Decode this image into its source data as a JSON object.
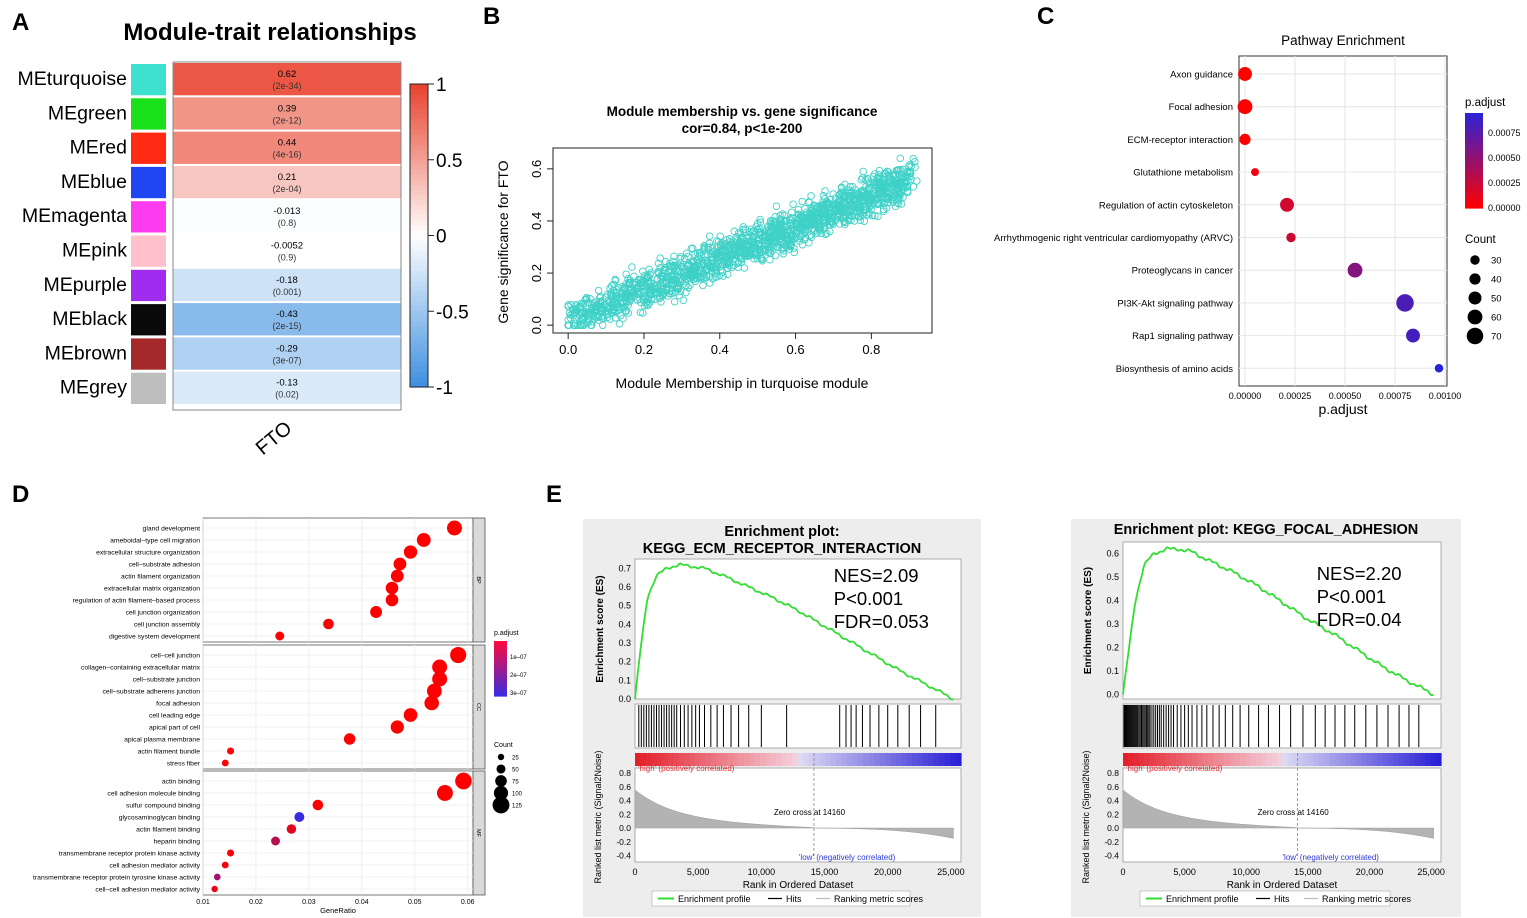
{
  "panel_labels": {
    "a": "A",
    "b": "B",
    "c": "C",
    "d": "D",
    "e": "E"
  },
  "colors": {
    "hot": "#e8412c",
    "cold": "#3d8fe0",
    "scatter": "#3fd1c7",
    "pval_low": "#ff0000",
    "pval_high": "#2a22d8",
    "gsea_curve": "#33dd33",
    "panel_bg": "#ededed"
  },
  "chart_data": [
    {
      "id": "A",
      "type": "heatmap",
      "title": "Module-trait relationships",
      "column_label": "FTO",
      "modules": [
        {
          "name": "MEturquoise",
          "color": "#3ee0d0",
          "value": 0.62,
          "pval": "(2e-34)"
        },
        {
          "name": "MEgreen",
          "color": "#19e119",
          "value": 0.39,
          "pval": "(2e-12)"
        },
        {
          "name": "MEred",
          "color": "#ff2a12",
          "value": 0.44,
          "pval": "(4e-16)"
        },
        {
          "name": "MEblue",
          "color": "#1f46f2",
          "value": 0.21,
          "pval": "(2e-04)"
        },
        {
          "name": "MEmagenta",
          "color": "#ff3bef",
          "value": -0.013,
          "pval": "(0.8)"
        },
        {
          "name": "MEpink",
          "color": "#ffc0cb",
          "value": -0.0052,
          "pval": "(0.9)"
        },
        {
          "name": "MEpurple",
          "color": "#a02cf0",
          "value": -0.18,
          "pval": "(0.001)"
        },
        {
          "name": "MEblack",
          "color": "#0a0a0a",
          "value": -0.43,
          "pval": "(2e-15)"
        },
        {
          "name": "MEbrown",
          "color": "#a5282a",
          "value": -0.29,
          "pval": "(3e-07)"
        },
        {
          "name": "MEgrey",
          "color": "#bebebe",
          "value": -0.13,
          "pval": "(0.02)"
        }
      ],
      "value_labels": [
        "0.62",
        "0.39",
        "0.44",
        "0.21",
        "-0.013",
        "-0.0052",
        "-0.18",
        "-0.43",
        "-0.29",
        "-0.13"
      ],
      "colorbar_ticks": [
        {
          "v": 1,
          "label": "1"
        },
        {
          "v": 0.5,
          "label": "0.5"
        },
        {
          "v": 0,
          "label": "0"
        },
        {
          "v": -0.5,
          "label": "-0.5"
        },
        {
          "v": -1,
          "label": "-1"
        }
      ]
    },
    {
      "id": "B",
      "type": "scatter",
      "title": "Module membership vs. gene significance",
      "subtitle": "cor=0.84, p<1e-200",
      "xlabel": "Module Membership in turquoise module",
      "ylabel": "Gene significance for FTO",
      "xlim": [
        -0.04,
        0.96
      ],
      "ylim": [
        -0.03,
        0.68
      ],
      "xticks": [
        "0.0",
        "0.2",
        "0.4",
        "0.6",
        "0.8"
      ],
      "yticks": [
        "0.0",
        "0.2",
        "0.4",
        "0.6"
      ],
      "trend": {
        "slope": 0.6,
        "intercept": 0.02,
        "noise": 0.075
      },
      "n_points": 1500
    },
    {
      "id": "C",
      "type": "scatter",
      "title": "Pathway Enrichment",
      "xlabel": "p.adjust",
      "xlim": [
        -3e-05,
        0.00101
      ],
      "xticks": [
        "0.00000",
        "0.00025",
        "0.00050",
        "0.00075",
        "0.00100"
      ],
      "pathways": [
        {
          "name": "Axon guidance",
          "p": 0.0,
          "count": 55
        },
        {
          "name": "Focal adhesion",
          "p": 0.0,
          "count": 60
        },
        {
          "name": "ECM-receptor interaction",
          "p": 0.0,
          "count": 40
        },
        {
          "name": "Glutathione metabolism",
          "p": 5e-05,
          "count": 22
        },
        {
          "name": "Regulation of actin cytoskeleton",
          "p": 0.00021,
          "count": 55
        },
        {
          "name": "Arrhythmogenic right ventricular cardiomyopathy (ARVC)",
          "p": 0.00023,
          "count": 30
        },
        {
          "name": "Proteoglycans in cancer",
          "p": 0.00055,
          "count": 60
        },
        {
          "name": "PI3K-Akt signaling pathway",
          "p": 0.0008,
          "count": 75
        },
        {
          "name": "Rap1 signaling pathway",
          "p": 0.00084,
          "count": 55
        },
        {
          "name": "Biosynthesis of amino acids",
          "p": 0.00097,
          "count": 25
        }
      ],
      "legend": {
        "color_title": "p.adjust",
        "color_ticks": [
          "0.00075",
          "0.00050",
          "0.00025",
          "0.00000"
        ],
        "size_title": "Count",
        "size_ticks": [
          "30",
          "40",
          "50",
          "60",
          "70"
        ]
      }
    },
    {
      "id": "D",
      "type": "scatter",
      "xlabel": "GeneRatio",
      "xlim": [
        0.01,
        0.061
      ],
      "xticks": [
        "0.01",
        "0.02",
        "0.03",
        "0.04",
        "0.05",
        "0.06"
      ],
      "facets": [
        {
          "label": "BP",
          "terms": [
            {
              "name": "gland development",
              "x": 0.0575,
              "count": 100,
              "p": 1e-09
            },
            {
              "name": "ameboidal–type cell migration",
              "x": 0.0517,
              "count": 90,
              "p": 1e-09
            },
            {
              "name": "extracellular structure organization",
              "x": 0.0492,
              "count": 85,
              "p": 1e-09
            },
            {
              "name": "cell–substrate adhesion",
              "x": 0.0472,
              "count": 80,
              "p": 1e-09
            },
            {
              "name": "actin filament organization",
              "x": 0.0467,
              "count": 80,
              "p": 1e-09
            },
            {
              "name": "extracellular matrix organization",
              "x": 0.0457,
              "count": 78,
              "p": 1e-09
            },
            {
              "name": "regulation of actin filament–based process",
              "x": 0.0457,
              "count": 78,
              "p": 1e-09
            },
            {
              "name": "cell junction organization",
              "x": 0.0427,
              "count": 72,
              "p": 1e-09
            },
            {
              "name": "cell junction assembly",
              "x": 0.0337,
              "count": 60,
              "p": 2e-09
            },
            {
              "name": "digestive system development",
              "x": 0.0245,
              "count": 45,
              "p": 3e-09
            }
          ]
        },
        {
          "label": "CC",
          "terms": [
            {
              "name": "cell–cell junction",
              "x": 0.0582,
              "count": 110,
              "p": 1e-09
            },
            {
              "name": "collagen–containing extracellular matrix",
              "x": 0.0547,
              "count": 100,
              "p": 1e-09
            },
            {
              "name": "cell–substrate junction",
              "x": 0.0547,
              "count": 100,
              "p": 1e-09
            },
            {
              "name": "cell–substrate adherens junction",
              "x": 0.0537,
              "count": 98,
              "p": 1e-09
            },
            {
              "name": "focal adhesion",
              "x": 0.0532,
              "count": 96,
              "p": 1e-09
            },
            {
              "name": "cell leading edge",
              "x": 0.0492,
              "count": 88,
              "p": 1e-09
            },
            {
              "name": "apical part of cell",
              "x": 0.0467,
              "count": 84,
              "p": 1e-09
            },
            {
              "name": "apical plasma membrane",
              "x": 0.0377,
              "count": 68,
              "p": 2e-09
            },
            {
              "name": "actin filament bundle",
              "x": 0.0152,
              "count": 28,
              "p": 4e-09
            },
            {
              "name": "stress fiber",
              "x": 0.0142,
              "count": 26,
              "p": 4e-09
            }
          ]
        },
        {
          "label": "MF",
          "terms": [
            {
              "name": "actin binding",
              "x": 0.0592,
              "count": 115,
              "p": 1e-09
            },
            {
              "name": "cell adhesion molecule binding",
              "x": 0.0557,
              "count": 108,
              "p": 1e-09
            },
            {
              "name": "sulfur compound binding",
              "x": 0.0317,
              "count": 60,
              "p": 3e-09
            },
            {
              "name": "glycosaminoglycan binding",
              "x": 0.0282,
              "count": 54,
              "p": 3e-07
            },
            {
              "name": "actin filament binding",
              "x": 0.0267,
              "count": 50,
              "p": 4e-08
            },
            {
              "name": "heparin binding",
              "x": 0.0237,
              "count": 45,
              "p": 1.1e-07
            },
            {
              "name": "transmembrane receptor protein kinase activity",
              "x": 0.0152,
              "count": 28,
              "p": 1e-08
            },
            {
              "name": "cell adhesion mediator activity",
              "x": 0.0142,
              "count": 26,
              "p": 2e-08
            },
            {
              "name": "transmembrane receptor protein tyrosine kinase activity",
              "x": 0.0127,
              "count": 24,
              "p": 1.5e-07
            },
            {
              "name": "cell–cell adhesion mediator activity",
              "x": 0.0122,
              "count": 22,
              "p": 3e-08
            }
          ]
        }
      ],
      "legend": {
        "color_title": "p.adjust",
        "color_ticks": [
          "1e–07",
          "2e–07",
          "3e–07"
        ],
        "size_title": "Count",
        "size_ticks": [
          "25",
          "50",
          "75",
          "100",
          "125"
        ]
      }
    },
    {
      "id": "E1",
      "type": "line",
      "title_line1": "Enrichment plot:",
      "title_line2": "KEGG_ECM_RECEPTOR_INTERACTION",
      "stats": [
        "NES=2.09",
        "P<0.001",
        "FDR=0.053"
      ],
      "es_ylabel": "Enrichment score (ES)",
      "es_ylim": [
        0.0,
        0.75
      ],
      "es_yticks": [
        "0.0",
        "0.1",
        "0.2",
        "0.3",
        "0.4",
        "0.5",
        "0.6",
        "0.7"
      ],
      "es_curve": [
        [
          0,
          0.0
        ],
        [
          500,
          0.3
        ],
        [
          1000,
          0.55
        ],
        [
          1700,
          0.66
        ],
        [
          2500,
          0.7
        ],
        [
          3500,
          0.72
        ],
        [
          4500,
          0.71
        ],
        [
          5500,
          0.7
        ],
        [
          7000,
          0.66
        ],
        [
          9000,
          0.6
        ],
        [
          11000,
          0.54
        ],
        [
          13000,
          0.47
        ],
        [
          15000,
          0.39
        ],
        [
          17000,
          0.31
        ],
        [
          19000,
          0.23
        ],
        [
          21000,
          0.15
        ],
        [
          23000,
          0.08
        ],
        [
          25200,
          0.0
        ]
      ],
      "hits": [
        300,
        500,
        700,
        900,
        1100,
        1300,
        1500,
        1700,
        1900,
        2100,
        2300,
        2500,
        2700,
        2900,
        3100,
        3300,
        3600,
        3900,
        4200,
        4500,
        4800,
        5100,
        5500,
        6000,
        6500,
        7000,
        7600,
        8200,
        9000,
        10000,
        12000,
        16200,
        16700,
        17100,
        17500,
        18000,
        18600,
        19300,
        20000,
        20800,
        21700,
        22600,
        23800
      ],
      "high_label": "'high' (positively correlated)",
      "low_label": "'low' (negatively correlated)",
      "zero_cross": "Zero cross at 14160",
      "rank_ylabel": "Ranked list metric (Signal2Noise)",
      "rank_yticks": [
        "0.8",
        "0.6",
        "0.4",
        "0.2",
        "0.0",
        "-0.2",
        "-0.4"
      ],
      "xlabel": "Rank in Ordered Dataset",
      "xticks": [
        "0",
        "5,000",
        "10,000",
        "15,000",
        "20,000",
        "25,000"
      ],
      "legend": [
        "Enrichment profile",
        "Hits",
        "Ranking metric scores"
      ]
    },
    {
      "id": "E2",
      "type": "line",
      "title_line1": "Enrichment plot: KEGG_FOCAL_ADHESION",
      "stats": [
        "NES=2.20",
        "P<0.001",
        "FDR=0.04"
      ],
      "es_ylabel": "Enrichment score (ES)",
      "es_ylim": [
        -0.02,
        0.65
      ],
      "es_yticks": [
        "0.0",
        "0.1",
        "0.2",
        "0.3",
        "0.4",
        "0.5",
        "0.6"
      ],
      "es_curve": [
        [
          0,
          0.0
        ],
        [
          500,
          0.2
        ],
        [
          1000,
          0.4
        ],
        [
          1700,
          0.55
        ],
        [
          2500,
          0.6
        ],
        [
          3500,
          0.62
        ],
        [
          4500,
          0.62
        ],
        [
          5500,
          0.61
        ],
        [
          7000,
          0.57
        ],
        [
          9000,
          0.52
        ],
        [
          11000,
          0.46
        ],
        [
          13000,
          0.39
        ],
        [
          15000,
          0.32
        ],
        [
          17000,
          0.26
        ],
        [
          19000,
          0.19
        ],
        [
          21000,
          0.12
        ],
        [
          23000,
          0.06
        ],
        [
          25200,
          0.0
        ]
      ],
      "hits": [
        80,
        160,
        240,
        320,
        400,
        480,
        560,
        640,
        720,
        800,
        880,
        960,
        1040,
        1120,
        1200,
        1300,
        1400,
        1500,
        1600,
        1700,
        1800,
        1900,
        2000,
        2100,
        2200,
        2350,
        2500,
        2650,
        2800,
        2950,
        3100,
        3300,
        3500,
        3700,
        3900,
        4100,
        4400,
        4700,
        5000,
        5300,
        5600,
        6000,
        6400,
        6800,
        7300,
        7800,
        8300,
        8900,
        9500,
        10200,
        11000,
        11800,
        12700,
        13600,
        14600,
        15600,
        16400,
        17200,
        18000,
        18800,
        19700,
        20600,
        21500,
        22400,
        23200,
        24000
      ],
      "high_label": "'high' (positively correlated)",
      "low_label": "'low' (negatively correlated)",
      "zero_cross": "Zero cross at 14160",
      "rank_ylabel": "Ranked list metric (Signal2Noise)",
      "rank_yticks": [
        "0.8",
        "0.6",
        "0.4",
        "0.2",
        "0.0",
        "-0.2",
        "-0.4"
      ],
      "xlabel": "Rank in Ordered Dataset",
      "xticks": [
        "0",
        "5,000",
        "10,000",
        "15,000",
        "20,000",
        "25,000"
      ],
      "legend": [
        "Enrichment profile",
        "Hits",
        "Ranking metric scores"
      ]
    }
  ]
}
